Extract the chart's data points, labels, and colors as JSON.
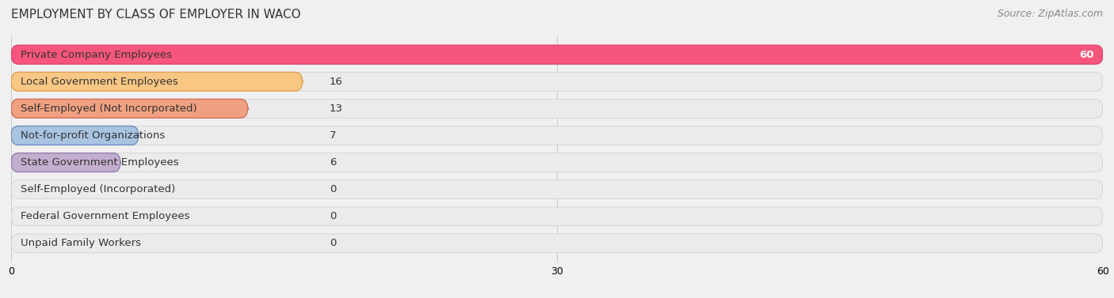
{
  "title": "EMPLOYMENT BY CLASS OF EMPLOYER IN WACO",
  "source": "Source: ZipAtlas.com",
  "categories": [
    "Private Company Employees",
    "Local Government Employees",
    "Self-Employed (Not Incorporated)",
    "Not-for-profit Organizations",
    "State Government Employees",
    "Self-Employed (Incorporated)",
    "Federal Government Employees",
    "Unpaid Family Workers"
  ],
  "values": [
    60,
    16,
    13,
    7,
    6,
    0,
    0,
    0
  ],
  "bar_colors": [
    "#f7567c",
    "#f9c784",
    "#f0a080",
    "#a8c4e0",
    "#c4aed0",
    "#7ececa",
    "#b0b8e8",
    "#f4a0b0"
  ],
  "bar_edge_colors": [
    "#e04070",
    "#e0a050",
    "#d07060",
    "#7090c0",
    "#9080b0",
    "#40a8a8",
    "#8090d0",
    "#d07090"
  ],
  "xlim": [
    0,
    60
  ],
  "xticks": [
    0,
    30,
    60
  ],
  "background_color": "#f0f0f0",
  "label_fontsize": 9.5,
  "title_fontsize": 11,
  "source_fontsize": 9
}
